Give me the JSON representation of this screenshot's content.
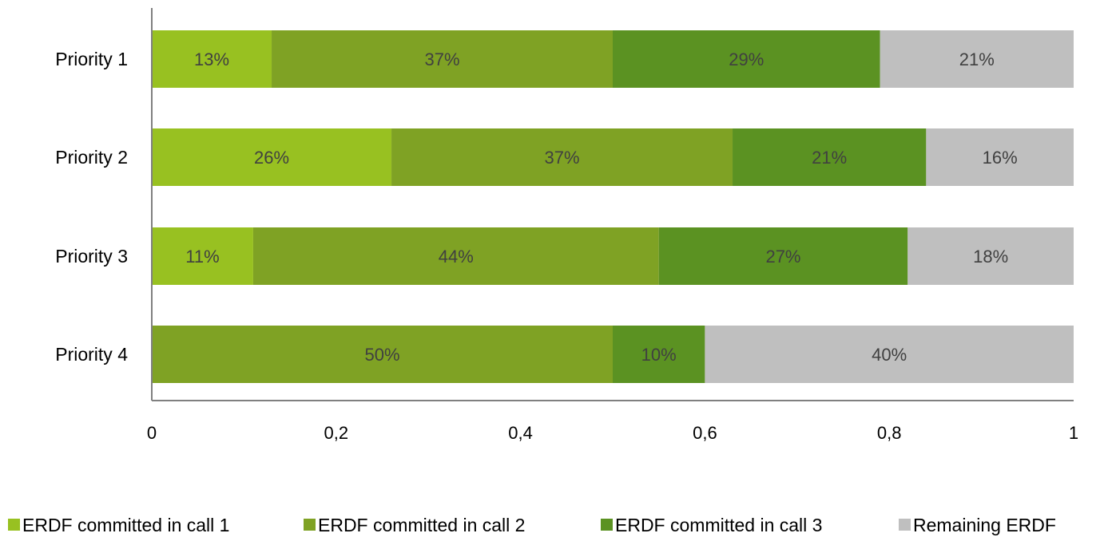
{
  "chart_data": {
    "type": "bar",
    "orientation": "horizontal",
    "stacked": true,
    "categories": [
      "Priority 1",
      "Priority 2",
      "Priority 3",
      "Priority 4"
    ],
    "series": [
      {
        "name": "ERDF committed in call 1",
        "color": "#98C121",
        "values": [
          0.13,
          0.26,
          0.11,
          0
        ],
        "labels": [
          "13%",
          "26%",
          "11%",
          ""
        ]
      },
      {
        "name": "ERDF committed in call 2",
        "color": "#7FA224",
        "values": [
          0.37,
          0.37,
          0.44,
          0.5
        ],
        "labels": [
          "37%",
          "37%",
          "44%",
          "50%"
        ]
      },
      {
        "name": "ERDF committed in call 3",
        "color": "#5B9222",
        "values": [
          0.29,
          0.21,
          0.27,
          0.1
        ],
        "labels": [
          "29%",
          "21%",
          "27%",
          "10%"
        ]
      },
      {
        "name": "Remaining ERDF",
        "color": "#BFBFBF",
        "values": [
          0.21,
          0.16,
          0.18,
          0.4
        ],
        "labels": [
          "21%",
          "16%",
          "18%",
          "40%"
        ]
      }
    ],
    "xlim": [
      0,
      1
    ],
    "x_ticks": [
      0,
      0.2,
      0.4,
      0.6,
      0.8,
      1
    ],
    "x_tick_labels": [
      "0",
      "0,2",
      "0,4",
      "0,6",
      "0,8",
      "1"
    ],
    "title": "",
    "xlabel": "",
    "ylabel": "",
    "grid": false,
    "legend_position": "bottom"
  }
}
